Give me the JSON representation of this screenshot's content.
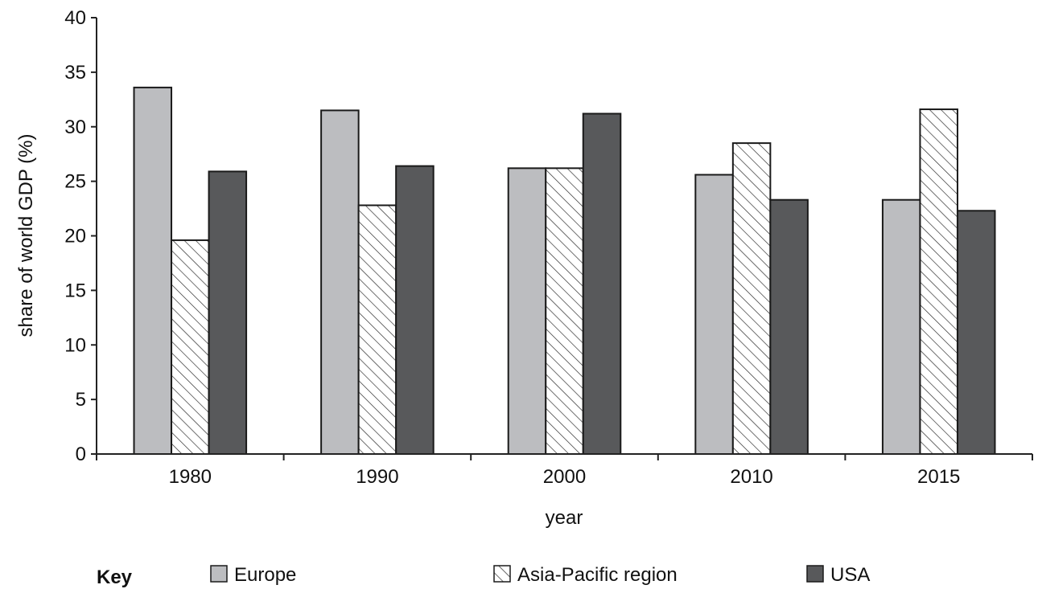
{
  "chart_data": {
    "type": "bar",
    "categories": [
      "1980",
      "1990",
      "2000",
      "2010",
      "2015"
    ],
    "series": [
      {
        "name": "Europe",
        "values": [
          33.6,
          31.5,
          26.2,
          25.6,
          23.3
        ],
        "color": "#bcbdc0",
        "pattern": "solid"
      },
      {
        "name": "Asia-Pacific region",
        "values": [
          19.6,
          22.8,
          26.2,
          28.5,
          31.6
        ],
        "color": "#ffffff",
        "pattern": "hatch"
      },
      {
        "name": "USA",
        "values": [
          25.9,
          26.4,
          31.2,
          23.3,
          22.3
        ],
        "color": "#58595b",
        "pattern": "solid"
      }
    ],
    "xlabel": "year",
    "ylabel": "share of world GDP (%)",
    "ylim": [
      0,
      40
    ],
    "yticks": [
      "0",
      "5",
      "10",
      "15",
      "20",
      "25",
      "30",
      "35",
      "40"
    ],
    "grid": false,
    "legend": {
      "title": "Key",
      "position": "bottom"
    }
  }
}
